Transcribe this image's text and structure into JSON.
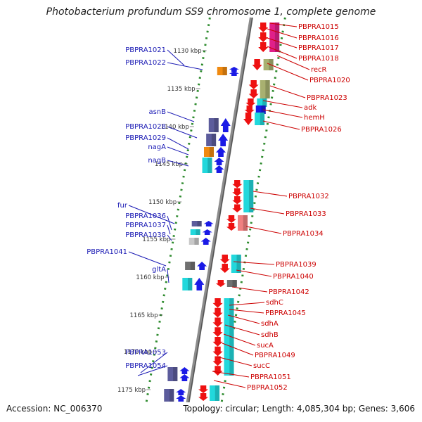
{
  "title": "Photobacterium profundum SS9 chromosome 1, complete genome",
  "footer": {
    "accession": "Accession: NC_006370",
    "summary": "Topology: circular; Length: 4,085,304 bp; Genes: 3,606"
  },
  "colors": {
    "left_label": "#1a1ab4",
    "right_label": "#cc0000",
    "dots": "#2e8b2e",
    "backbone": "#8c8c8c",
    "forward": "#1a1ae6",
    "reverse": "#ee1111",
    "cyan": "#22d8dc",
    "magenta": "#e0208a",
    "olive": "#a8b070",
    "orange": "#f08a10",
    "slate": "#5c5c9c",
    "pink": "#f08080"
  },
  "kbp_ticks": [
    "1130 kbp",
    "1135 kbp",
    "1140 kbp",
    "1145 kbp",
    "1150 kbp",
    "1155 kbp",
    "1160 kbp",
    "1165 kbp",
    "1170 kbp",
    "1175 kbp"
  ],
  "left_genes": [
    "PBPRA1021",
    "PBPRA1022",
    "asnB",
    "PBPRA1028",
    "PBPRA1029",
    "nagA",
    "nagB",
    "fur",
    "PBPRA1036",
    "PBPRA1037",
    "PBPRA1038",
    "PBPRA1041",
    "gltA",
    "PBPRA1053",
    "PBPRA1054"
  ],
  "right_genes": [
    "PBPRA1015",
    "PBPRA1016",
    "PBPRA1017",
    "PBPRA1018",
    "recR",
    "PBPRA1020",
    "PBPRA1023",
    "adk",
    "hemH",
    "PBPRA1026",
    "PBPRA1032",
    "PBPRA1033",
    "PBPRA1034",
    "PBPRA1039",
    "PBPRA1040",
    "PBPRA1042",
    "sdhC",
    "PBPRA1045",
    "sdhA",
    "sdhB",
    "sucA",
    "PBPRA1049",
    "sucC",
    "PBPRA1051",
    "PBPRA1052"
  ]
}
